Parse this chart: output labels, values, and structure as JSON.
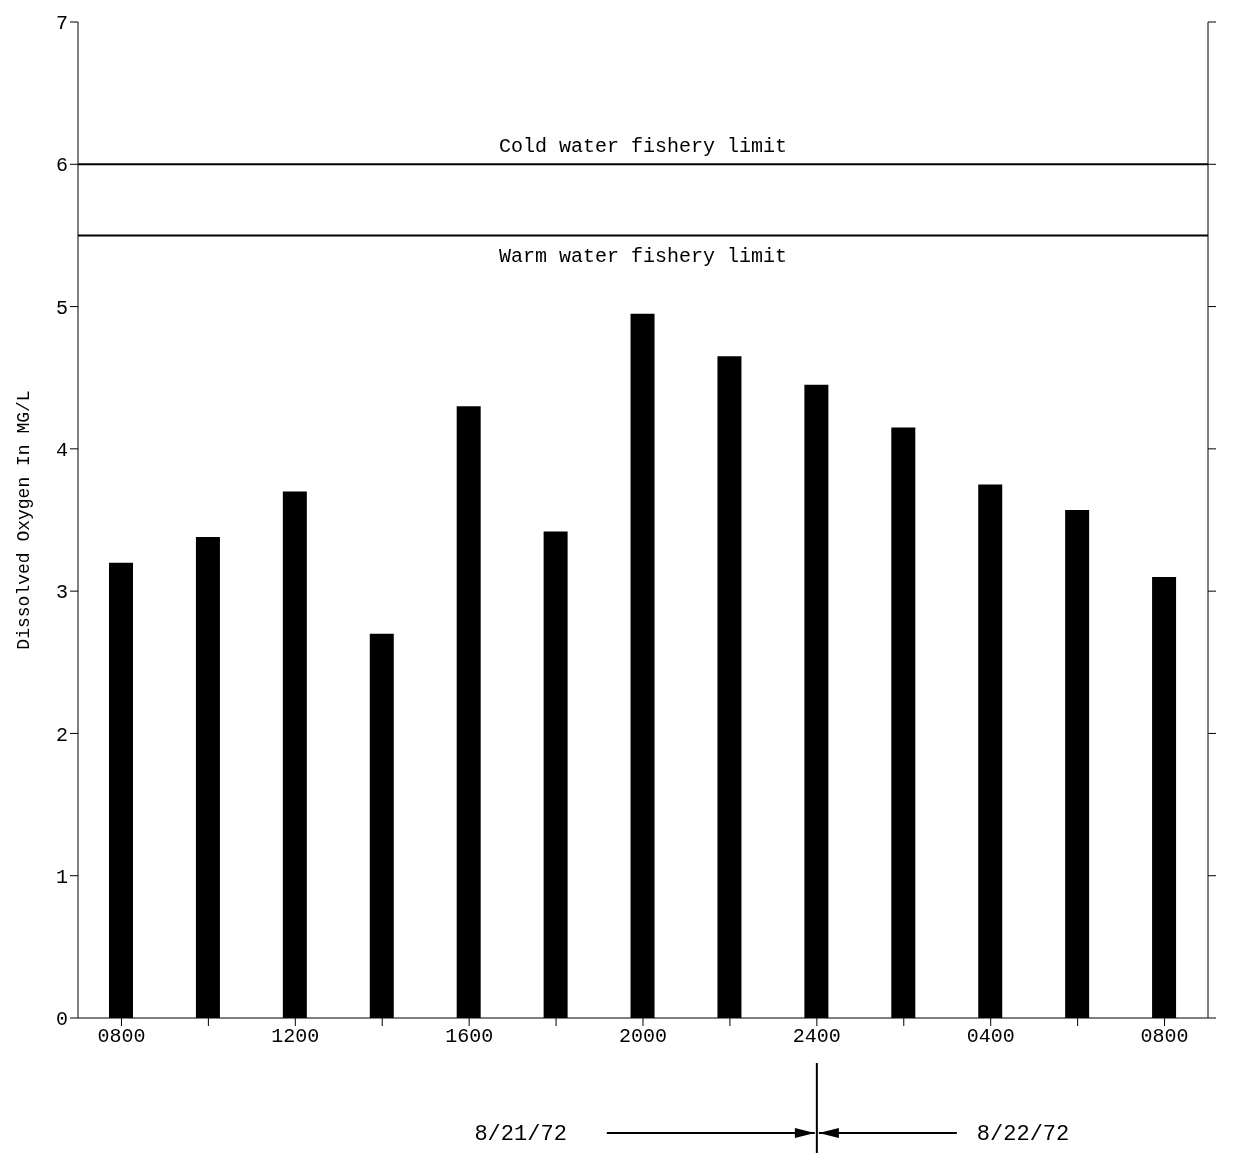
{
  "chart_data": {
    "type": "bar",
    "ylabel": "Dissolved Oxygen In MG/L",
    "categories": [
      "0800",
      null,
      "1200",
      null,
      "1600",
      null,
      "2000",
      null,
      "2400",
      null,
      "0400",
      null,
      "0800"
    ],
    "values": [
      3.2,
      3.38,
      3.7,
      2.7,
      4.3,
      3.42,
      4.95,
      4.65,
      4.45,
      4.15,
      3.75,
      3.57,
      3.1
    ],
    "color": "#000000",
    "ylim": [
      0,
      7
    ],
    "yticks": [
      0,
      1,
      2,
      3,
      4,
      5,
      6,
      7
    ],
    "grid": false,
    "legend": false,
    "ref_lines": [
      {
        "axis": "y",
        "value": 6,
        "label": "Cold water fishery limit",
        "color": "#000000"
      },
      {
        "axis": "y",
        "value": 5.5,
        "label": "Warm water fishery limit",
        "color": "#000000"
      }
    ],
    "annotations": [
      "8/21/72",
      "8/22/72"
    ]
  }
}
